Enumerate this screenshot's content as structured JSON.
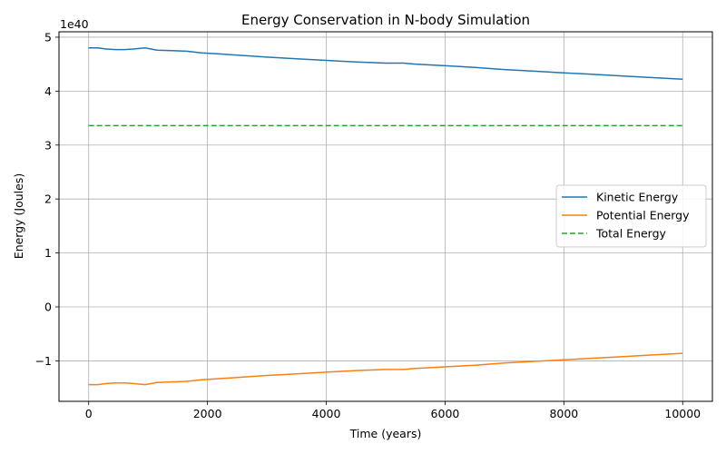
{
  "chart_data": {
    "type": "line",
    "title": "Energy Conservation in N-body Simulation",
    "xlabel": "Time (years)",
    "ylabel": "Energy (Joules)",
    "y_offset_label": "1e40",
    "xlim": [
      -500,
      10500
    ],
    "ylim": [
      -1.75,
      5.1
    ],
    "xticks": [
      0,
      2000,
      4000,
      6000,
      8000,
      10000
    ],
    "xtick_labels": [
      "0",
      "2000",
      "4000",
      "6000",
      "8000",
      "10000"
    ],
    "yticks": [
      -1,
      0,
      1,
      2,
      3,
      4,
      5
    ],
    "ytick_labels": [
      "−1",
      "0",
      "1",
      "2",
      "3",
      "4",
      "5"
    ],
    "grid": true,
    "legend_position": "center-right",
    "series": [
      {
        "name": "Kinetic Energy",
        "color": "#1f77b4",
        "style": "solid",
        "x": [
          0,
          150,
          300,
          450,
          600,
          750,
          950,
          1150,
          1400,
          1650,
          1900,
          2200,
          2600,
          3000,
          3500,
          4000,
          4500,
          5000,
          5300,
          5500,
          6000,
          6500,
          7000,
          7500,
          8000,
          8500,
          9000,
          9500,
          10000
        ],
        "y": [
          4.8,
          4.8,
          4.78,
          4.77,
          4.77,
          4.78,
          4.8,
          4.76,
          4.75,
          4.74,
          4.71,
          4.69,
          4.66,
          4.63,
          4.6,
          4.57,
          4.54,
          4.52,
          4.52,
          4.5,
          4.47,
          4.44,
          4.4,
          4.37,
          4.34,
          4.31,
          4.28,
          4.25,
          4.22
        ]
      },
      {
        "name": "Potential Energy",
        "color": "#ff7f0e",
        "style": "solid",
        "x": [
          0,
          150,
          300,
          450,
          600,
          750,
          950,
          1150,
          1400,
          1650,
          1900,
          2200,
          2600,
          3000,
          3500,
          4000,
          4500,
          5000,
          5300,
          5500,
          6000,
          6500,
          7000,
          7500,
          8000,
          8500,
          9000,
          9500,
          10000
        ],
        "y": [
          -1.44,
          -1.44,
          -1.42,
          -1.41,
          -1.41,
          -1.42,
          -1.44,
          -1.4,
          -1.39,
          -1.38,
          -1.35,
          -1.33,
          -1.3,
          -1.27,
          -1.24,
          -1.21,
          -1.18,
          -1.16,
          -1.16,
          -1.14,
          -1.11,
          -1.08,
          -1.04,
          -1.01,
          -0.98,
          -0.95,
          -0.92,
          -0.89,
          -0.86
        ]
      },
      {
        "name": "Total Energy",
        "color": "#2ca02c",
        "style": "dashed",
        "x": [
          0,
          10000
        ],
        "y": [
          3.36,
          3.36
        ]
      }
    ]
  }
}
